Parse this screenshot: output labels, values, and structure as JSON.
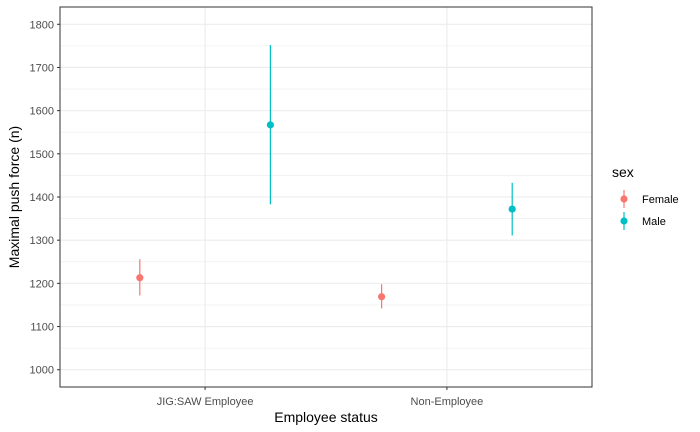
{
  "chart_data": {
    "type": "scatter",
    "subtype": "pointrange",
    "xlabel": "Employee status",
    "ylabel": "Maximal push force (n)",
    "categories": [
      "JIG:SAW Employee",
      "Non-Employee"
    ],
    "ylim": [
      960,
      1840
    ],
    "yticks": [
      1000,
      1100,
      1200,
      1300,
      1400,
      1500,
      1600,
      1700,
      1800
    ],
    "grid": true,
    "legend": {
      "title": "sex",
      "position": "right"
    },
    "series": [
      {
        "name": "Female",
        "color": "#F8766D",
        "points": [
          {
            "category": "JIG:SAW Employee",
            "y": 1213,
            "low": 1172,
            "high": 1256
          },
          {
            "category": "Non-Employee",
            "y": 1169,
            "low": 1142,
            "high": 1198
          }
        ]
      },
      {
        "name": "Male",
        "color": "#00BFC4",
        "points": [
          {
            "category": "JIG:SAW Employee",
            "y": 1567,
            "low": 1383,
            "high": 1752
          },
          {
            "category": "Non-Employee",
            "y": 1372,
            "low": 1311,
            "high": 1433
          }
        ]
      }
    ]
  }
}
